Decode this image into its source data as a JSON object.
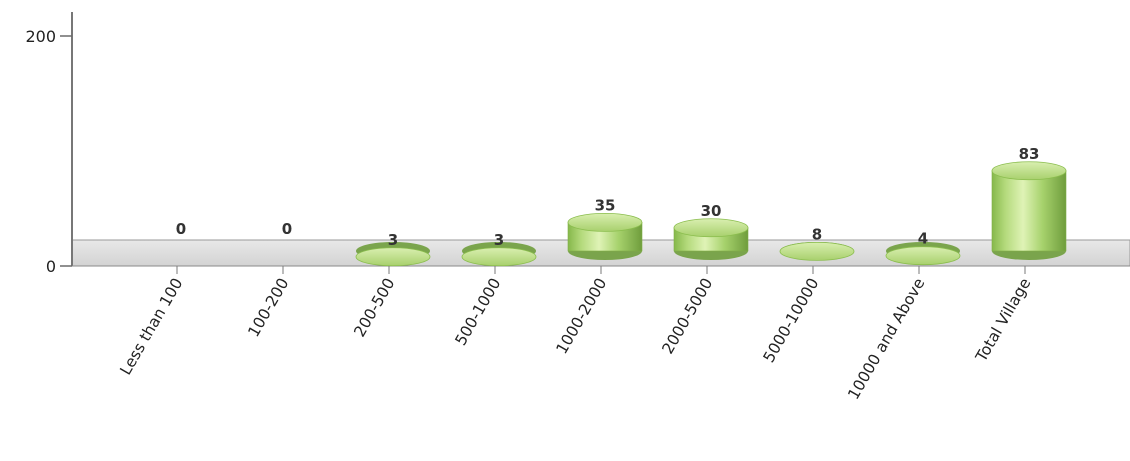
{
  "chart_data": {
    "type": "bar",
    "categories": [
      "Less than 100",
      "100-200",
      "200-500",
      "500-1000",
      "1000-2000",
      "2000-5000",
      "5000-10000",
      "10000 and Above",
      "Total Village"
    ],
    "values": [
      0,
      0,
      3,
      3,
      35,
      30,
      8,
      4,
      83
    ],
    "title": "",
    "xlabel": "",
    "ylabel": "",
    "ylim": [
      0,
      200
    ],
    "yticks": [
      0,
      200
    ],
    "grid": false,
    "legend": "none",
    "colors": {
      "bar_body": "#a6cf6b",
      "bar_highlight": "#dff3b6",
      "bar_shadow": "#6f9d3c",
      "bar_top": "#c6e68f",
      "floor": "#dedede",
      "floor_stroke": "#9a9a9a",
      "axis": "#777777"
    }
  }
}
